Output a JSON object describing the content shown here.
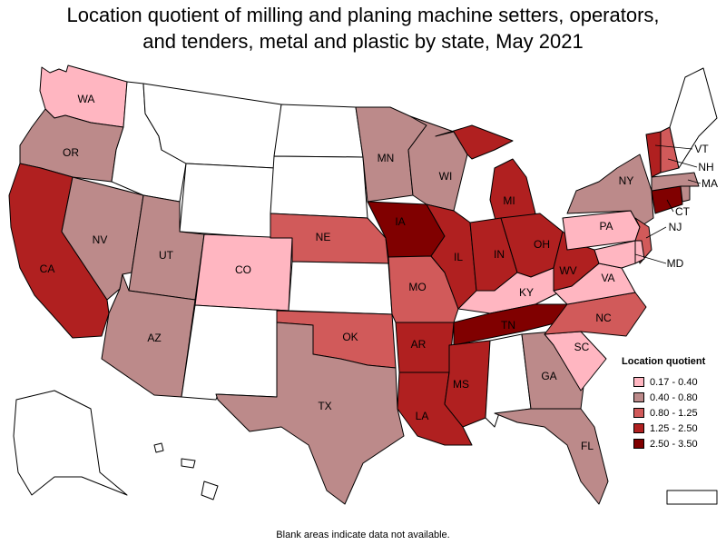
{
  "title": "Location quotient of milling and planing machine setters, operators, and tenders, metal and plastic by state, May 2021",
  "title_line1": "Location quotient of milling and planing machine setters, operators,",
  "title_line2": "and tenders, metal and plastic by state, May 2021",
  "legend": {
    "title": "Location quotient",
    "items": [
      {
        "label": "0.17 - 0.40",
        "color": "#ffb6c1"
      },
      {
        "label": "0.40 - 0.80",
        "color": "#bc8a8a"
      },
      {
        "label": "0.80 - 1.25",
        "color": "#d15a5a"
      },
      {
        "label": "1.25 - 2.50",
        "color": "#b02020"
      },
      {
        "label": "2.50 - 3.50",
        "color": "#800000"
      }
    ]
  },
  "footnote": "Blank areas indicate data not available.",
  "states": {
    "WA": "0.17 - 0.40",
    "OR": "0.40 - 0.80",
    "CA": "1.25 - 2.50",
    "NV": "0.40 - 0.80",
    "UT": "0.40 - 0.80",
    "AZ": "0.40 - 0.80",
    "CO": "0.17 - 0.40",
    "NE": "0.80 - 1.25",
    "OK": "0.80 - 1.25",
    "TX": "0.40 - 0.80",
    "MN": "0.40 - 0.80",
    "IA": "2.50 - 3.50",
    "MO": "0.80 - 1.25",
    "AR": "1.25 - 2.50",
    "LA": "1.25 - 2.50",
    "WI": "0.40 - 0.80",
    "IL": "1.25 - 2.50",
    "MI": "1.25 - 2.50",
    "IN": "1.25 - 2.50",
    "OH": "1.25 - 2.50",
    "KY": "0.17 - 0.40",
    "TN": "2.50 - 3.50",
    "MS": "1.25 - 2.50",
    "GA": "0.40 - 0.80",
    "FL": "0.40 - 0.80",
    "SC": "0.17 - 0.40",
    "NC": "0.80 - 1.25",
    "VA": "0.17 - 0.40",
    "WV": "1.25 - 2.50",
    "PA": "0.17 - 0.40",
    "NY": "0.40 - 0.80",
    "NJ": "0.80 - 1.25",
    "MD": "0.17 - 0.40",
    "DE": "0.17 - 0.40",
    "CT": "2.50 - 3.50",
    "MA": "0.40 - 0.80",
    "RI": "0.40 - 0.80",
    "VT": "1.25 - 2.50",
    "NH": "0.80 - 1.25",
    "ME": "",
    "MT": "",
    "ID": "",
    "WY": "",
    "ND": "",
    "SD": "",
    "KS": "",
    "NM": "",
    "AL": "",
    "AK": "",
    "HI": "",
    "PR": ""
  }
}
